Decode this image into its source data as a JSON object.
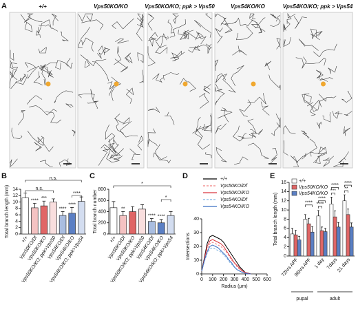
{
  "figure_a": {
    "panel": "A",
    "columns": [
      "+/+",
      "Vps50KO/KO",
      "Vps50KO/KO; ppk > Vps50",
      "Vps54KO/KO",
      "Vps54KO/KO; ppk > Vps54"
    ]
  },
  "chart_data": [
    {
      "type": "bar",
      "panel": "B",
      "y_label": "Total branch length (mm)",
      "categories": [
        "+/+",
        "Vps50KO/Df",
        "Vps50KO/KO",
        "Vps50KO/KO; ppk>Vps50",
        "Vps54KO/Df",
        "Vps54KO/KO",
        "Vps54KO/KO; ppk>Vps54"
      ],
      "values": [
        11.3,
        8.2,
        8.8,
        10.0,
        5.8,
        6.5,
        10.2
      ],
      "errors": [
        1.5,
        1.4,
        1.5,
        1.0,
        1.2,
        1.8,
        1.4
      ],
      "colors": [
        "#ffffff",
        "#f4c2c2",
        "#e06666",
        "#f9dede",
        "#a9bde0",
        "#5b7fc4",
        "#d3ddf0"
      ],
      "significance": [
        null,
        "****",
        "***",
        null,
        "****",
        "****",
        null
      ],
      "brackets": [
        "n.s.",
        "n.s.",
        "****"
      ],
      "ylim": [
        0,
        14
      ],
      "yticks": [
        0,
        2,
        4,
        6,
        8,
        10,
        12,
        14
      ]
    },
    {
      "type": "bar",
      "panel": "C",
      "y_label": "Total branch number",
      "categories": [
        "+/+",
        "Vps50KO/Df",
        "Vps50KO/KO",
        "Vps50KO/KO; ppk>Vps50",
        "Vps54KO/Df",
        "Vps54KO/KO",
        "Vps54KO/KO; ppk>Vps54"
      ],
      "values": [
        470,
        330,
        400,
        445,
        225,
        200,
        330
      ],
      "errors": [
        110,
        70,
        90,
        80,
        50,
        60,
        70
      ],
      "colors": [
        "#ffffff",
        "#f4c2c2",
        "#e06666",
        "#f9dede",
        "#a9bde0",
        "#5b7fc4",
        "#d3ddf0"
      ],
      "significance": [
        null,
        "**",
        null,
        null,
        "****",
        "****",
        null
      ],
      "brackets": [
        "*",
        "*"
      ],
      "ylim": [
        0,
        800
      ],
      "yticks": [
        0,
        200,
        400,
        600,
        800
      ]
    },
    {
      "type": "line",
      "panel": "D",
      "x_label": "Radius (μm)",
      "y_label": "Intersections",
      "x": [
        0,
        25,
        50,
        75,
        100,
        125,
        150,
        175,
        200,
        225,
        250,
        275,
        300,
        325,
        350,
        375,
        400,
        425,
        450
      ],
      "series": [
        {
          "name": "+/+",
          "color": "#000000",
          "dash": false,
          "values": [
            2,
            12,
            22,
            27,
            28,
            27,
            26,
            25,
            23,
            20,
            17,
            14,
            11,
            8,
            5,
            3,
            1,
            0.5,
            0
          ]
        },
        {
          "name": "Vps50KO/Df",
          "color": "#f08080",
          "dash": true,
          "values": [
            2,
            10,
            18,
            22,
            23,
            22,
            21,
            20,
            18,
            16,
            13,
            10,
            8,
            5,
            3,
            2,
            1,
            0.3,
            0
          ]
        },
        {
          "name": "Vps50KO/KO",
          "color": "#d9363e",
          "dash": false,
          "values": [
            2,
            11,
            20,
            24,
            25,
            24,
            23,
            22,
            20,
            17,
            14,
            11,
            8,
            6,
            4,
            2,
            1,
            0.3,
            0
          ]
        },
        {
          "name": "Vps54KO/Df",
          "color": "#7fb3e0",
          "dash": true,
          "values": [
            2,
            9,
            15,
            18,
            19,
            18,
            17,
            16,
            14,
            12,
            9,
            7,
            5,
            3,
            2,
            1,
            0.5,
            0,
            0
          ]
        },
        {
          "name": "Vps54KO/KO",
          "color": "#3a6fc4",
          "dash": false,
          "values": [
            2,
            10,
            16,
            20,
            21,
            20,
            19,
            17,
            15,
            13,
            10,
            8,
            5,
            3,
            2,
            1,
            0.5,
            0,
            0
          ]
        }
      ],
      "xlim": [
        0,
        600
      ],
      "xticks": [
        0,
        100,
        200,
        300,
        400,
        500,
        600
      ],
      "ylim": [
        0,
        40
      ],
      "yticks": [
        0,
        10,
        20,
        30,
        40
      ]
    },
    {
      "type": "grouped_bar",
      "panel": "E",
      "y_label": "Total branch length (mm)",
      "categories": [
        "72hrs APF",
        "96hrs APF",
        "1 day",
        "7days",
        "21 days"
      ],
      "groups": [
        "pupal",
        "adult"
      ],
      "series": [
        {
          "name": "+/+",
          "color": "#ffffff",
          "values": [
            4.8,
            8.0,
            8.7,
            11.3,
            12.0
          ],
          "errors": [
            1.2,
            1.0,
            1.2,
            1.5,
            1.3
          ]
        },
        {
          "name": "Vps50KO/KO",
          "color": "#e06666",
          "values": [
            4.6,
            7.0,
            5.5,
            8.5,
            9.0
          ],
          "errors": [
            1.0,
            1.2,
            0.8,
            1.3,
            1.2
          ]
        },
        {
          "name": "Vps54KO/KO",
          "color": "#5b7fc4",
          "values": [
            3.5,
            5.2,
            5.3,
            6.3,
            6.3
          ],
          "errors": [
            0.8,
            1.2,
            0.7,
            1.0,
            0.9
          ]
        }
      ],
      "brackets": [
        "****",
        "****",
        "****",
        "****",
        "***",
        "****",
        "**"
      ],
      "ylim": [
        0,
        16
      ],
      "yticks": [
        0,
        2,
        4,
        6,
        8,
        10,
        12,
        14,
        16
      ]
    }
  ]
}
